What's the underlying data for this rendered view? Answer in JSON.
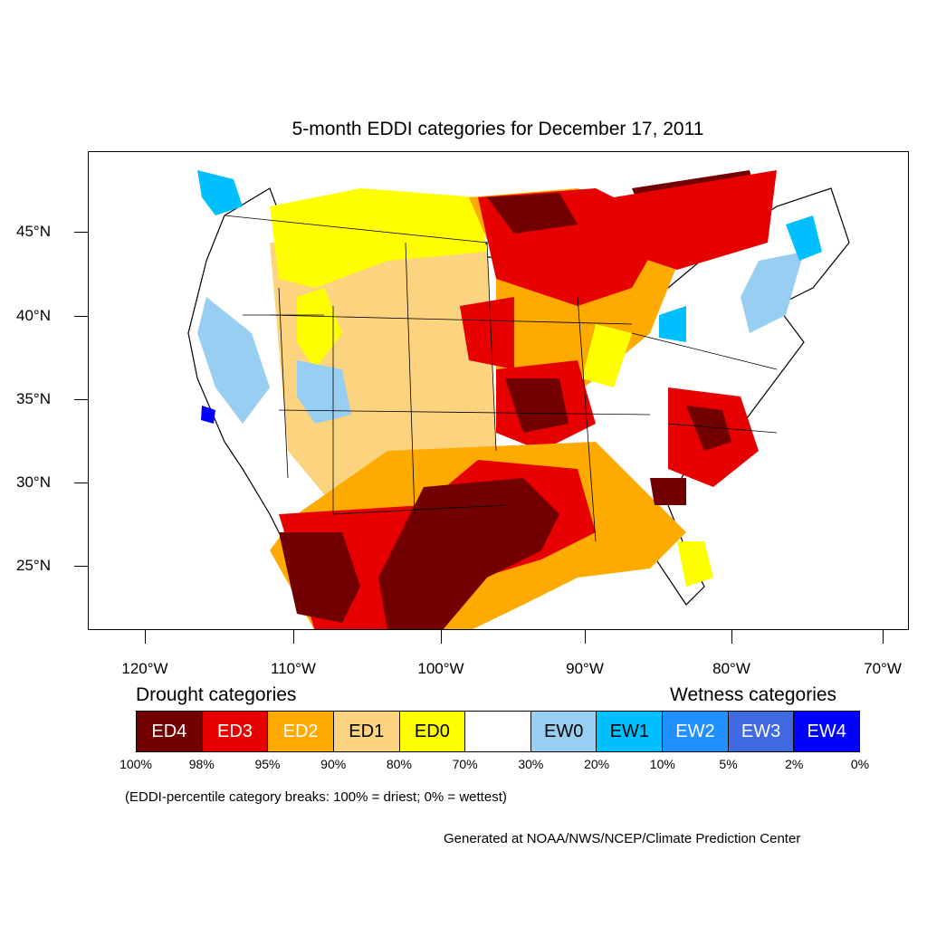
{
  "title": "5-month EDDI categories for December 17, 2011",
  "map": {
    "lat_labels": [
      "45°N",
      "40°N",
      "35°N",
      "30°N",
      "25°N"
    ],
    "lon_labels": [
      "120°W",
      "110°W",
      "100°W",
      "90°W",
      "80°W",
      "70°W"
    ],
    "region_colors": {
      "land": "#ffffff",
      "ED4": "#730000",
      "ED3": "#e60000",
      "ED2": "#ffaa00",
      "ED1": "#fcd37f",
      "ED0": "#ffff00",
      "EW0": "#98cef2",
      "EW1": "#00bfff",
      "EW2": "#1e90ff",
      "EW3": "#4169e1",
      "EW4": "#0000ff"
    }
  },
  "legend": {
    "drought_heading": "Drought categories",
    "wetness_heading": "Wetness categories",
    "categories": [
      {
        "label": "ED4",
        "color": "#730000",
        "text_color": "#ffffff"
      },
      {
        "label": "ED3",
        "color": "#e60000",
        "text_color": "#ffffff"
      },
      {
        "label": "ED2",
        "color": "#ffaa00",
        "text_color": "#ffffff"
      },
      {
        "label": "ED1",
        "color": "#fcd37f",
        "text_color": "#000000"
      },
      {
        "label": "ED0",
        "color": "#ffff00",
        "text_color": "#000000"
      },
      {
        "label": "",
        "color": "#ffffff",
        "text_color": "#000000"
      },
      {
        "label": "EW0",
        "color": "#98cef2",
        "text_color": "#000000"
      },
      {
        "label": "EW1",
        "color": "#00bfff",
        "text_color": "#000000"
      },
      {
        "label": "EW2",
        "color": "#1e90ff",
        "text_color": "#ffffff"
      },
      {
        "label": "EW3",
        "color": "#4169e1",
        "text_color": "#ffffff"
      },
      {
        "label": "EW4",
        "color": "#0000ff",
        "text_color": "#ffffff"
      }
    ],
    "breaks": [
      "100%",
      "98%",
      "95%",
      "90%",
      "80%",
      "70%",
      "30%",
      "20%",
      "10%",
      "5%",
      "2%",
      "0%"
    ]
  },
  "note": "(EDDI-percentile category breaks: 100% = driest; 0% = wettest)",
  "credit": "Generated at NOAA/NWS/NCEP/Climate Prediction Center"
}
